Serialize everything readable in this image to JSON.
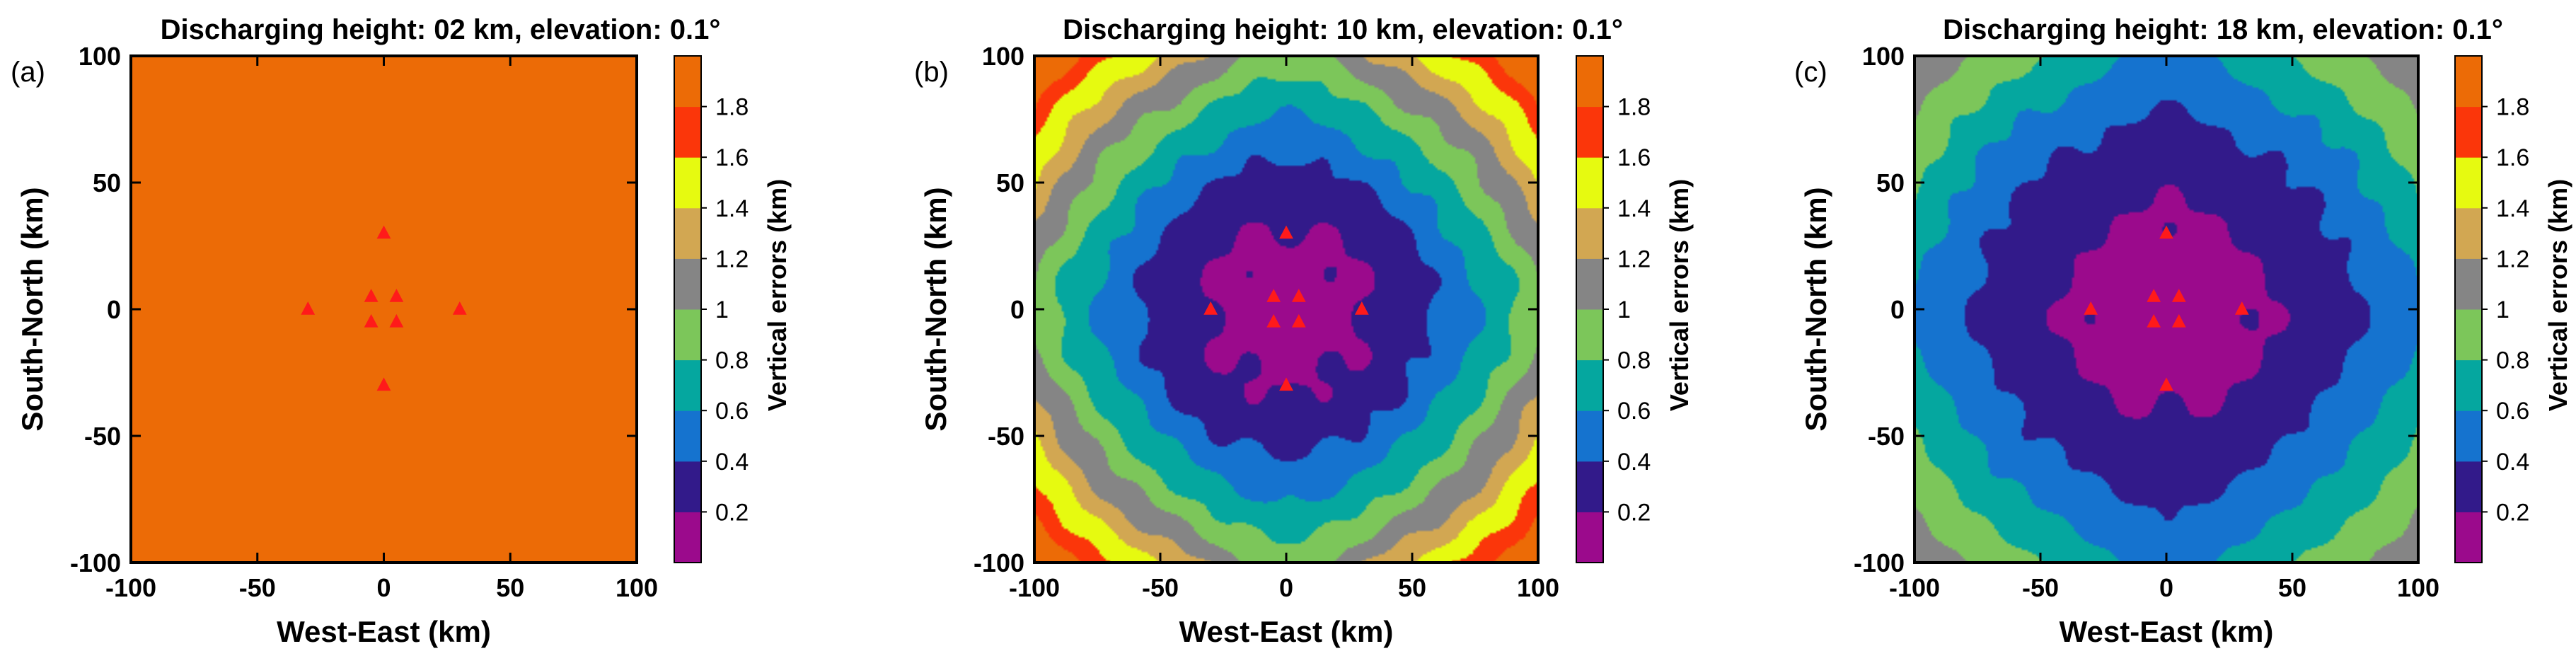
{
  "figure": {
    "colorbar_label": "Vertical errors (km)",
    "colorbar_ticks": [
      "0.2",
      "0.4",
      "0.6",
      "0.8",
      "1",
      "1.2",
      "1.4",
      "1.6",
      "1.8"
    ],
    "colors": {
      "levels": [
        "#9b0a8c",
        "#321a8a",
        "#1573cf",
        "#05a79f",
        "#7cc65a",
        "#858585",
        "#d2a752",
        "#e6fa10",
        "#fb360a",
        "#ec6b06"
      ],
      "station": "#ff1a1a"
    }
  },
  "chart_data": [
    {
      "type": "contourf",
      "panel_label": "(a)",
      "title": "Discharging height: 02 km, elevation: 0.1°",
      "xlabel": "West-East (km)",
      "ylabel": "South-North (km)",
      "xlim": [
        -100,
        100
      ],
      "ylim": [
        -100,
        100
      ],
      "xticks": [
        -100,
        -50,
        0,
        50,
        100
      ],
      "yticks": [
        -100,
        -50,
        0,
        50,
        100
      ],
      "zlim": [
        0,
        2.0
      ],
      "level_step": 0.2,
      "stations": [
        [
          0,
          30
        ],
        [
          -30,
          0
        ],
        [
          30,
          0
        ],
        [
          0,
          -30
        ],
        [
          -5,
          5
        ],
        [
          5,
          5
        ],
        [
          -5,
          -5
        ],
        [
          5,
          -5
        ]
      ],
      "field": {
        "base": 2.0,
        "amplitude": 1.88,
        "l_center": 78,
        "lobe_amplitude": 0.28,
        "lobe_width": 34,
        "lobe_reach": 34,
        "power": 2.0,
        "offset": 0,
        "ripple": 0.1
      }
    },
    {
      "type": "contourf",
      "panel_label": "(b)",
      "title": "Discharging height: 10 km, elevation: 0.1°",
      "xlabel": "West-East (km)",
      "ylabel": "South-North (km)",
      "xlim": [
        -100,
        100
      ],
      "ylim": [
        -100,
        100
      ],
      "xticks": [
        -100,
        -50,
        0,
        50,
        100
      ],
      "yticks": [
        -100,
        -50,
        0,
        50,
        100
      ],
      "zlim": [
        0,
        2.0
      ],
      "level_step": 0.2,
      "stations": [
        [
          0,
          30
        ],
        [
          -30,
          0
        ],
        [
          30,
          0
        ],
        [
          0,
          -30
        ],
        [
          -5,
          5
        ],
        [
          5,
          5
        ],
        [
          -5,
          -5
        ],
        [
          5,
          -5
        ]
      ],
      "field": {
        "base": 0.13,
        "amplitude": 1.15,
        "l_center": 100,
        "lobe_amplitude": 0.5,
        "lobe_width": 30,
        "lobe_reach": 40,
        "power": 2.5,
        "offset": 0,
        "ripple": 0.05
      }
    },
    {
      "type": "contourf",
      "panel_label": "(c)",
      "title": "Discharging height: 18 km, elevation: 0.1°",
      "xlabel": "West-East (km)",
      "ylabel": "South-North (km)",
      "xlim": [
        -100,
        100
      ],
      "ylim": [
        -100,
        100
      ],
      "xticks": [
        -100,
        -50,
        0,
        50,
        100
      ],
      "yticks": [
        -100,
        -50,
        0,
        50,
        100
      ],
      "zlim": [
        0,
        2.0
      ],
      "level_step": 0.2,
      "stations": [
        [
          0,
          30
        ],
        [
          -30,
          0
        ],
        [
          30,
          0
        ],
        [
          0,
          -30
        ],
        [
          -5,
          5
        ],
        [
          5,
          5
        ],
        [
          -5,
          -5
        ],
        [
          5,
          -5
        ]
      ],
      "field": {
        "base": 0.13,
        "amplitude": 0.67,
        "l_center": 104,
        "lobe_amplitude": 0.5,
        "lobe_width": 30,
        "lobe_reach": 40,
        "power": 2.5,
        "offset": 0,
        "ripple": 0.04
      }
    }
  ]
}
